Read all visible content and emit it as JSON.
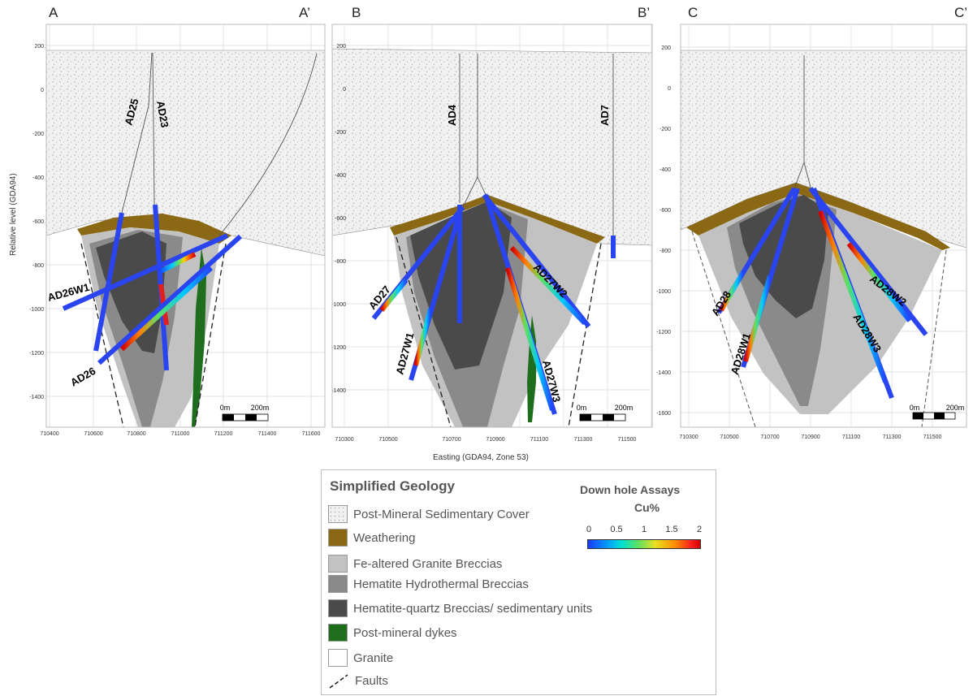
{
  "panels": [
    {
      "left": "A",
      "right": "A’",
      "yticks": [
        "200",
        "0",
        "-200",
        "-400",
        "-600",
        "-800",
        "-1000",
        "-1200",
        "-1400"
      ],
      "xticks": [
        "710400",
        "710600",
        "710800",
        "711000",
        "711200",
        "711400",
        "711600"
      ],
      "scale": [
        "0m",
        "200m"
      ],
      "holes": [
        "AD25",
        "AD23",
        "AD26W1",
        "AD26"
      ]
    },
    {
      "left": "B",
      "right": "B’",
      "yticks": [
        "200",
        "0",
        "-200",
        "-400",
        "-600",
        "-800",
        "-1000",
        "-1200",
        "-1400"
      ],
      "xticks": [
        "710300",
        "710500",
        "710700",
        "710900",
        "711100",
        "711300",
        "711500"
      ],
      "scale": [
        "0m",
        "200m"
      ],
      "holes": [
        "AD4",
        "AD7",
        "AD27",
        "AD27W1",
        "AD27W2",
        "AD27W3"
      ]
    },
    {
      "left": "C",
      "right": "C’",
      "yticks": [
        "200",
        "0",
        "-200",
        "-400",
        "-600",
        "-800",
        "-1000",
        "-1200",
        "-1400",
        "-1600"
      ],
      "xticks": [
        "710300",
        "710500",
        "710700",
        "710900",
        "711100",
        "711300",
        "711500"
      ],
      "scale": [
        "0m",
        "200m"
      ],
      "holes": [
        "AD28",
        "AD28W1",
        "AD28W2",
        "AD28W3"
      ]
    }
  ],
  "y_axis_label": "Relative level (GDA94)",
  "x_axis_label": "Easting (GDA94, Zone 53)",
  "legend": {
    "title": "Simplified Geology",
    "items": [
      {
        "label": "Post-Mineral Sedimentary Cover",
        "color": "#f1f1f1"
      },
      {
        "label": "Weathering",
        "color": "#8b6914"
      },
      {
        "label": "Fe-altered Granite Breccias",
        "color": "#c2c2c2"
      },
      {
        "label": "Hematite Hydrothermal Breccias",
        "color": "#8a8a8a"
      },
      {
        "label": "Hematite-quartz Breccias/ sedimentary units",
        "color": "#4a4a4a"
      },
      {
        "label": "Post-mineral dykes",
        "color": "#1e6e1e"
      },
      {
        "label": "Granite",
        "color": "#ffffff"
      },
      {
        "label": "Faults",
        "color": "#222222"
      }
    ],
    "assays_title": "Down hole Assays",
    "assays_unit": "Cu%",
    "ticks": [
      "0",
      "0.5",
      "1",
      "1.5",
      "2"
    ]
  }
}
